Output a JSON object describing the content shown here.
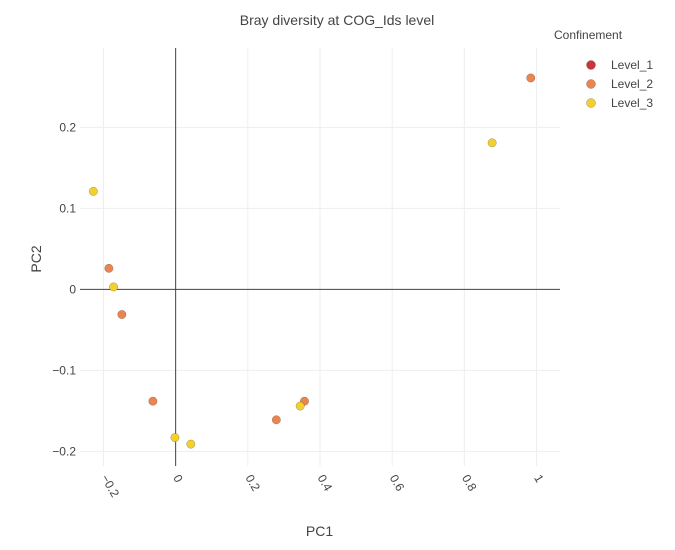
{
  "chart_data": {
    "type": "scatter",
    "title": "Bray diversity at COG_Ids level",
    "xlabel": "PC1",
    "ylabel": "PC2",
    "xlim": [
      -0.265,
      1.065
    ],
    "ylim": [
      -0.218,
      0.298
    ],
    "x_ticks": [
      -0.2,
      0,
      0.2,
      0.4,
      0.6,
      0.8,
      1
    ],
    "x_tick_labels": [
      "−0.2",
      "0",
      "0.2",
      "0.4",
      "0.6",
      "0.8",
      "1"
    ],
    "y_ticks": [
      -0.2,
      -0.1,
      0,
      0.1,
      0.2
    ],
    "y_tick_labels": [
      "−0.2",
      "−0.1",
      "0",
      "0.1",
      "0.2"
    ],
    "grid": true,
    "zero_lines": true,
    "legend": {
      "title": "Confinement",
      "placement": "top-right"
    },
    "series": [
      {
        "name": "Level_1",
        "color": "#c8363a",
        "x": [],
        "y": []
      },
      {
        "name": "Level_2",
        "color": "#ea8550",
        "x": [
          -0.185,
          -0.149,
          -0.063,
          0.279,
          0.357,
          0.984
        ],
        "y": [
          0.026,
          -0.031,
          -0.138,
          -0.161,
          -0.138,
          0.261
        ]
      },
      {
        "name": "Level_3",
        "color": "#f3d02e",
        "x": [
          -0.228,
          -0.172,
          -0.002,
          0.042,
          0.345,
          0.877
        ],
        "y": [
          0.121,
          0.003,
          -0.183,
          -0.191,
          -0.144,
          0.181
        ]
      }
    ]
  }
}
